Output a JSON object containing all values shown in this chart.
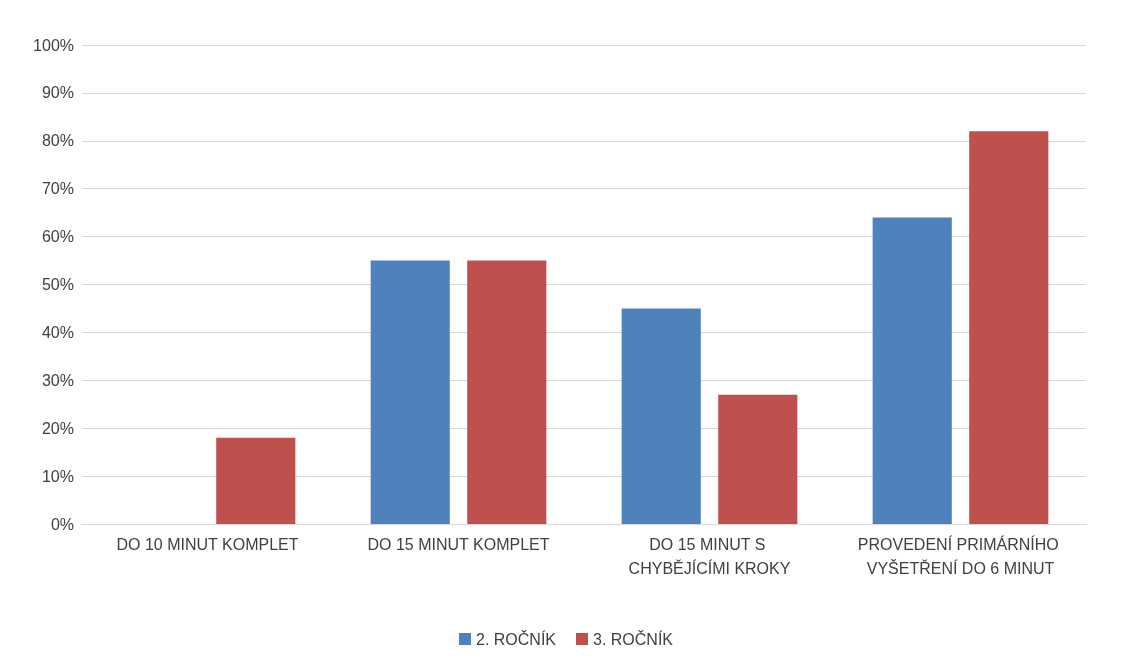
{
  "chart_data": {
    "type": "bar",
    "categories": [
      "DO 10 MINUT KOMPLET",
      "DO 15 MINUT KOMPLET",
      "DO 15 MINUT S CHYBĚJÍCÍMI KROKY",
      "PROVEDENÍ PRIMÁRNÍHO VYŠETŘENÍ DO 6 MINUT"
    ],
    "series": [
      {
        "name": "2. ROČNÍK",
        "color": "#4f81bd",
        "values": [
          0,
          55,
          45,
          64
        ]
      },
      {
        "name": "3. ROČNÍK",
        "color": "#c0504d",
        "values": [
          18,
          55,
          27,
          82
        ]
      }
    ],
    "ylim": [
      0,
      100
    ],
    "yticks": [
      {
        "value": 0,
        "label": "0%"
      },
      {
        "value": 10,
        "label": "10%"
      },
      {
        "value": 20,
        "label": "20%"
      },
      {
        "value": 30,
        "label": "30%"
      },
      {
        "value": 40,
        "label": "40%"
      },
      {
        "value": 50,
        "label": "50%"
      },
      {
        "value": 60,
        "label": "60%"
      },
      {
        "value": 70,
        "label": "70%"
      },
      {
        "value": 80,
        "label": "80%"
      },
      {
        "value": 90,
        "label": "90%"
      },
      {
        "value": 100,
        "label": "100%"
      }
    ],
    "grid": "y",
    "legend": "bottom"
  }
}
